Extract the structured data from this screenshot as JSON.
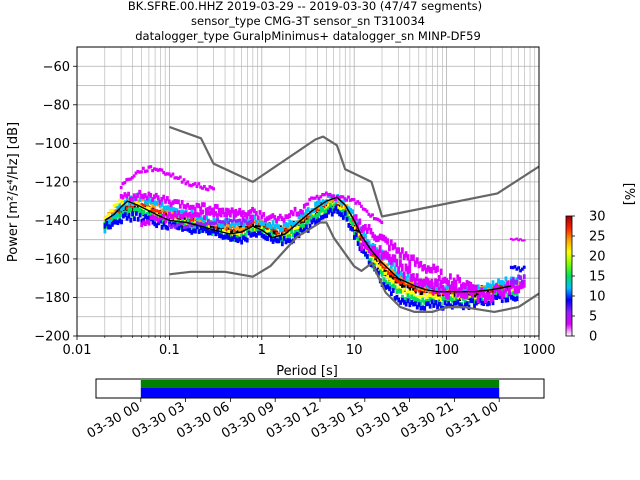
{
  "chart_data": [
    {
      "type": "heatmap",
      "title": [
        "BK.SFRE.00.HHZ   2019-03-29 -- 2019-03-30  (47/47 segments)",
        "sensor_type CMG-3T sensor_sn T310034",
        "datalogger_type GuralpMinimus+ datalogger_sn MINP-DF59"
      ],
      "xlabel": "Period [s]",
      "ylabel": "Power [m²/s⁴/Hz] [dB]",
      "x_scale": "log",
      "xlim": [
        0.01,
        1000
      ],
      "ylim": [
        -200,
        -50
      ],
      "x_ticks": [
        {
          "v": 0.01,
          "label": "0.01"
        },
        {
          "v": 0.1,
          "label": "0.1"
        },
        {
          "v": 1,
          "label": "1"
        },
        {
          "v": 10,
          "label": "10"
        },
        {
          "v": 100,
          "label": "100"
        },
        {
          "v": 1000,
          "label": "1000"
        }
      ],
      "y_ticks": [
        -60,
        -80,
        -100,
        -120,
        -140,
        -160,
        -180,
        -200
      ],
      "grid": true,
      "colorbar": {
        "label": "[%]",
        "range": [
          0,
          30
        ],
        "ticks": [
          0,
          5,
          10,
          15,
          20,
          25,
          30
        ],
        "colors": [
          "#ffffff",
          "#e000ff",
          "#9020ff",
          "#0000ff",
          "#00c0ff",
          "#00e060",
          "#80ff00",
          "#ffff00",
          "#ffa000",
          "#ff2000",
          "#a00000"
        ]
      },
      "series": [
        {
          "role": "new_high_noise_model",
          "color": "#666666",
          "x": [
            0.1,
            0.22,
            0.3,
            0.8,
            3.8,
            4.6,
            6.5,
            8,
            15.4,
            20,
            354.8,
            1000
          ],
          "y": [
            -91.5,
            -97.4,
            -110.5,
            -120,
            -98,
            -96.5,
            -101,
            -113.5,
            -120,
            -138,
            -126,
            -112
          ]
        },
        {
          "role": "new_low_noise_model",
          "color": "#666666",
          "x": [
            0.1,
            0.17,
            0.4,
            0.8,
            1.24,
            2.4,
            4.3,
            5,
            6,
            10,
            12,
            15.6,
            21.9,
            31.6,
            45,
            70,
            101,
            154,
            328,
            600,
            1000
          ],
          "y": [
            -168,
            -166.7,
            -166.7,
            -169.2,
            -163.7,
            -148.6,
            -141.1,
            -141.1,
            -149,
            -163.8,
            -166.2,
            -162.1,
            -177.5,
            -185,
            -187.5,
            -187.5,
            -185,
            -185,
            -187.5,
            -185,
            -178
          ]
        },
        {
          "role": "mode",
          "color": "#000000",
          "x": [
            0.02,
            0.025,
            0.03,
            0.035,
            0.045,
            0.06,
            0.08,
            0.1,
            0.15,
            0.22,
            0.3,
            0.45,
            0.6,
            0.8,
            1,
            1.3,
            1.8,
            2.5,
            3.5,
            5,
            6.5,
            8,
            10,
            12,
            15,
            20,
            30,
            45,
            60,
            80,
            100,
            150,
            200,
            300,
            400,
            500
          ],
          "y": [
            -140,
            -137,
            -133,
            -130,
            -132,
            -135,
            -138,
            -140,
            -141,
            -143,
            -145,
            -147,
            -146,
            -143,
            -145,
            -149,
            -147,
            -141,
            -135,
            -130,
            -128,
            -132,
            -140,
            -148,
            -155,
            -162,
            -170,
            -174,
            -176,
            -177,
            -177,
            -177,
            -177,
            -176,
            -175,
            -174
          ]
        }
      ],
      "pdf_bands": [
        {
          "x": [
            0.02,
            0.03,
            0.045,
            0.07,
            0.1,
            0.2,
            0.35,
            0.6,
            0.8,
            1,
            1.5,
            2,
            3,
            4,
            5,
            6,
            8,
            10,
            12,
            15,
            20,
            30,
            45,
            70,
            100,
            150,
            200,
            300,
            400,
            600
          ],
          "y": [
            -143,
            -135,
            -133,
            -136,
            -139,
            -141,
            -144,
            -146,
            -142,
            -143,
            -147,
            -145,
            -140,
            -135,
            -132,
            -131,
            -134,
            -142,
            -150,
            -157,
            -164,
            -172,
            -176,
            -178,
            -178,
            -178,
            -178,
            -177,
            -175,
            -174
          ],
          "spread": 4,
          "color": "#000000"
        },
        {
          "x": [
            0.02,
            0.03,
            0.045,
            0.07,
            0.1,
            0.2,
            0.35,
            0.6,
            0.8,
            1,
            1.5,
            2,
            3,
            4,
            5,
            6,
            8,
            10,
            12,
            15,
            20,
            30,
            45,
            70,
            100,
            150,
            200,
            300,
            400,
            600
          ],
          "y": [
            -141,
            -134,
            -131,
            -134,
            -137,
            -140,
            -143,
            -145,
            -141,
            -142,
            -146,
            -144,
            -139,
            -134,
            -131,
            -130,
            -133,
            -141,
            -149,
            -156,
            -163,
            -171,
            -175,
            -177,
            -177,
            -177,
            -177,
            -176,
            -174,
            -173
          ],
          "spread": 2,
          "color": "#ff2000"
        },
        {
          "x": [
            0.02,
            0.03,
            0.045,
            0.07,
            0.1,
            0.2,
            0.35,
            0.6,
            0.8,
            1,
            1.5,
            2,
            3,
            4,
            5,
            6,
            8,
            10,
            12,
            15,
            20,
            30,
            45,
            70,
            100,
            150,
            200,
            300,
            400,
            600
          ],
          "y": [
            -139,
            -131,
            -129,
            -132,
            -136,
            -139,
            -142,
            -144,
            -140,
            -141,
            -145,
            -143,
            -138,
            -133,
            -130,
            -129,
            -132,
            -139,
            -147,
            -154,
            -161,
            -169,
            -174,
            -176,
            -176,
            -176,
            -176,
            -175,
            -173,
            -172
          ],
          "spread": 2,
          "color": "#ffa000"
        },
        {
          "x": [
            0.02,
            0.03,
            0.045,
            0.07,
            0.1,
            0.2,
            0.35,
            0.6,
            0.8,
            1,
            1.5,
            2,
            3,
            4,
            5,
            6,
            8,
            10,
            12,
            15,
            20,
            30,
            45,
            70,
            100,
            150,
            200,
            300,
            400,
            600
          ],
          "y": [
            -138,
            -130,
            -131,
            -137,
            -140,
            -142,
            -146,
            -148,
            -144,
            -145,
            -149,
            -147,
            -142,
            -136,
            -133,
            -132,
            -135,
            -144,
            -152,
            -159,
            -166,
            -175,
            -179,
            -180,
            -180,
            -180,
            -180,
            -179,
            -177,
            -176
          ],
          "spread": 2,
          "color": "#ffff00"
        },
        {
          "x": [
            0.02,
            0.03,
            0.045,
            0.07,
            0.1,
            0.2,
            0.35,
            0.6,
            0.8,
            1,
            1.5,
            2,
            3,
            4,
            5,
            6,
            8,
            10,
            12,
            15,
            20,
            30,
            45,
            70,
            100,
            150,
            200,
            300,
            400,
            600
          ],
          "y": [
            -142,
            -137,
            -135,
            -138,
            -141,
            -143,
            -147,
            -149,
            -145,
            -146,
            -150,
            -148,
            -143,
            -137,
            -134,
            -133,
            -136,
            -145,
            -153,
            -161,
            -169,
            -178,
            -182,
            -182,
            -182,
            -182,
            -181,
            -180,
            -178,
            -177
          ],
          "spread": 3,
          "color": "#00e060"
        },
        {
          "x": [
            0.02,
            0.03,
            0.045,
            0.07,
            0.1,
            0.2,
            0.35,
            0.6,
            0.8,
            1,
            1.5,
            2,
            3,
            4,
            5,
            6,
            8,
            10,
            12,
            15,
            20,
            30,
            45,
            70,
            100,
            150,
            200,
            300,
            400,
            600
          ],
          "y": [
            -144,
            -133,
            -128,
            -130,
            -134,
            -138,
            -141,
            -143,
            -139,
            -140,
            -144,
            -142,
            -137,
            -132,
            -129,
            -128,
            -131,
            -138,
            -145,
            -152,
            -158,
            -167,
            -172,
            -175,
            -175,
            -175,
            -175,
            -174,
            -172,
            -171
          ],
          "spread": 3,
          "color": "#00c0ff"
        },
        {
          "x": [
            0.02,
            0.03,
            0.045,
            0.07,
            0.1,
            0.2,
            0.35,
            0.6,
            0.8,
            1,
            1.5,
            2,
            3,
            4,
            5,
            6,
            8,
            10,
            12,
            15,
            20,
            30,
            45,
            70,
            100,
            150,
            200,
            300,
            400,
            600
          ],
          "y": [
            -143,
            -139,
            -138,
            -141,
            -143,
            -145,
            -148,
            -150,
            -147,
            -148,
            -151,
            -150,
            -145,
            -139,
            -136,
            -135,
            -138,
            -147,
            -155,
            -163,
            -172,
            -181,
            -185,
            -184,
            -184,
            -184,
            -183,
            -182,
            -180,
            -179
          ],
          "spread": 3,
          "color": "#0000ff"
        },
        {
          "x": [
            0.03,
            0.04,
            0.05,
            0.07,
            0.1,
            0.15,
            0.2,
            0.3
          ],
          "y": [
            -122,
            -117,
            -114,
            -113,
            -116,
            -120,
            -122,
            -124
          ],
          "spread": 2,
          "color": "#e000ff"
        },
        {
          "x": [
            0.03,
            0.05,
            0.08,
            0.12,
            0.2,
            0.3,
            0.5,
            0.8
          ],
          "y": [
            -128,
            -127,
            -129,
            -132,
            -133,
            -134,
            -136,
            -138
          ],
          "spread": 3,
          "color": "#e000ff"
        },
        {
          "x": [
            0.05,
            0.1,
            0.2,
            0.4,
            0.8,
            1.5,
            2,
            3
          ],
          "y": [
            -141,
            -138,
            -137,
            -136,
            -136,
            -140,
            -137,
            -134
          ],
          "spread": 3,
          "color": "#e000ff"
        },
        {
          "x": [
            0.1,
            0.2,
            0.35,
            0.6,
            0.8
          ],
          "y": [
            -143,
            -142,
            -140,
            -141,
            -140
          ],
          "spread": 2,
          "color": "#9020ff"
        },
        {
          "x": [
            3,
            4,
            5,
            6,
            8,
            10,
            12,
            15,
            20
          ],
          "y": [
            -131,
            -128,
            -127,
            -128,
            -128,
            -130,
            -133,
            -137,
            -140
          ],
          "spread": 2,
          "color": "#e000ff"
        },
        {
          "x": [
            10,
            15,
            20,
            30,
            45,
            70,
            100,
            150,
            200
          ],
          "y": [
            -140,
            -146,
            -150,
            -156,
            -162,
            -166,
            -170,
            -173,
            -174
          ],
          "spread": 4,
          "color": "#e000ff"
        },
        {
          "x": [
            12,
            20,
            30,
            45,
            70,
            100,
            150,
            200,
            300,
            500,
            700
          ],
          "y": [
            -152,
            -158,
            -164,
            -170,
            -174,
            -176,
            -177,
            -178,
            -178,
            -175,
            -174
          ],
          "spread": 5,
          "color": "#e000ff"
        },
        {
          "x": [
            500,
            700
          ],
          "y": [
            -165,
            -165
          ],
          "spread": 2,
          "color": "#0000ff"
        },
        {
          "x": [
            500,
            700
          ],
          "y": [
            -171,
            -171
          ],
          "spread": 3,
          "color": "#9020ff"
        },
        {
          "x": [
            500,
            700
          ],
          "y": [
            -150,
            -150
          ],
          "spread": 1,
          "color": "#e000ff"
        }
      ]
    },
    {
      "type": "bar",
      "title": "",
      "x_ticks": [
        "03-30 00",
        "03-30 03",
        "03-30 06",
        "03-30 09",
        "03-30 12",
        "03-30 15",
        "03-30 18",
        "03-30 21",
        "03-31 00"
      ],
      "x_range": [
        "03-29 21:00",
        "03-31 03:00"
      ],
      "coverage": [
        {
          "start": "03-30 00:00",
          "end": "03-31 00:00",
          "color": "#008000"
        },
        {
          "start": "03-30 00:00",
          "end": "03-31 00:00",
          "color": "#0000ff"
        }
      ]
    }
  ]
}
